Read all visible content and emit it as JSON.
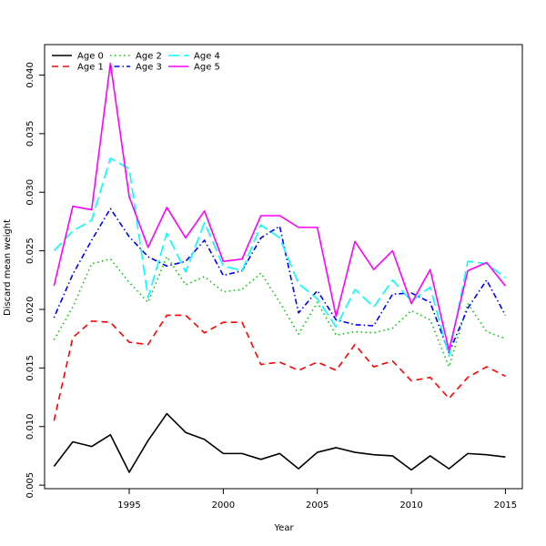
{
  "chart_data": {
    "type": "line",
    "title": "",
    "xlabel": "Year",
    "ylabel": "Discard mean weight",
    "xlim": [
      1990.5,
      2015.9
    ],
    "ylim": [
      0.0047,
      0.0426
    ],
    "x_ticks": [
      1995,
      2000,
      2005,
      2010,
      2015
    ],
    "y_ticks": [
      0.005,
      0.01,
      0.015,
      0.02,
      0.025,
      0.03,
      0.035,
      0.04
    ],
    "y_tick_labels": [
      "0.005",
      "0.010",
      "0.015",
      "0.020",
      "0.025",
      "0.030",
      "0.035",
      "0.040"
    ],
    "legend_position": "top-left",
    "x": [
      1991,
      1992,
      1993,
      1994,
      1995,
      1996,
      1997,
      1998,
      1999,
      2000,
      2001,
      2002,
      2003,
      2004,
      2005,
      2006,
      2007,
      2008,
      2009,
      2010,
      2011,
      2012,
      2013,
      2014,
      2015
    ],
    "series": [
      {
        "name": "Age 0",
        "color": "#000000",
        "dash": "solid",
        "values": [
          0.0066,
          0.0087,
          0.0083,
          0.0093,
          0.0061,
          0.0088,
          0.0111,
          0.0095,
          0.0089,
          0.0077,
          0.0077,
          0.0072,
          0.0077,
          0.0064,
          0.0078,
          0.0082,
          0.0078,
          0.0076,
          0.0075,
          0.0063,
          0.0075,
          0.0064,
          0.0077,
          0.0076,
          0.0074
        ]
      },
      {
        "name": "Age 1",
        "color": "#ff0000",
        "dash": "dashed",
        "values": [
          0.0105,
          0.0176,
          0.019,
          0.0189,
          0.0172,
          0.017,
          0.0195,
          0.0195,
          0.018,
          0.0189,
          0.0189,
          0.0153,
          0.0155,
          0.0148,
          0.0155,
          0.0148,
          0.017,
          0.0151,
          0.0156,
          0.0139,
          0.0142,
          0.0124,
          0.0142,
          0.0151,
          0.0143
        ]
      },
      {
        "name": "Age 2",
        "color": "#00cd00",
        "dash": "dotted",
        "values": [
          0.0174,
          0.0202,
          0.0239,
          0.0243,
          0.0223,
          0.0206,
          0.0245,
          0.0221,
          0.0228,
          0.0215,
          0.0217,
          0.0231,
          0.0206,
          0.0179,
          0.0206,
          0.0178,
          0.0181,
          0.018,
          0.0184,
          0.0199,
          0.0191,
          0.0151,
          0.0205,
          0.0181,
          0.0175
        ]
      },
      {
        "name": "Age 3",
        "color": "#0000ff",
        "dash": "dotdash",
        "values": [
          0.0193,
          0.023,
          0.0259,
          0.0286,
          0.0262,
          0.0245,
          0.0237,
          0.0241,
          0.0259,
          0.0229,
          0.0233,
          0.0261,
          0.0271,
          0.0197,
          0.0216,
          0.0191,
          0.0187,
          0.0186,
          0.0213,
          0.0214,
          0.0206,
          0.0163,
          0.0201,
          0.0225,
          0.0195
        ]
      },
      {
        "name": "Age 4",
        "color": "#00ffff",
        "dash": "longdash",
        "values": [
          0.025,
          0.0267,
          0.0276,
          0.0329,
          0.032,
          0.021,
          0.0265,
          0.0232,
          0.0274,
          0.0237,
          0.0233,
          0.0272,
          0.0261,
          0.0222,
          0.0209,
          0.0185,
          0.0217,
          0.0202,
          0.0225,
          0.0207,
          0.0219,
          0.016,
          0.0241,
          0.0239,
          0.0227
        ]
      },
      {
        "name": "Age 5",
        "color": "#ff00ff",
        "dash": "solid",
        "values": [
          0.022,
          0.0288,
          0.0285,
          0.041,
          0.0296,
          0.0253,
          0.0287,
          0.0261,
          0.0284,
          0.0241,
          0.0243,
          0.028,
          0.028,
          0.027,
          0.027,
          0.0194,
          0.0258,
          0.0234,
          0.025,
          0.0205,
          0.0234,
          0.0165,
          0.0233,
          0.024,
          0.022
        ]
      }
    ]
  }
}
